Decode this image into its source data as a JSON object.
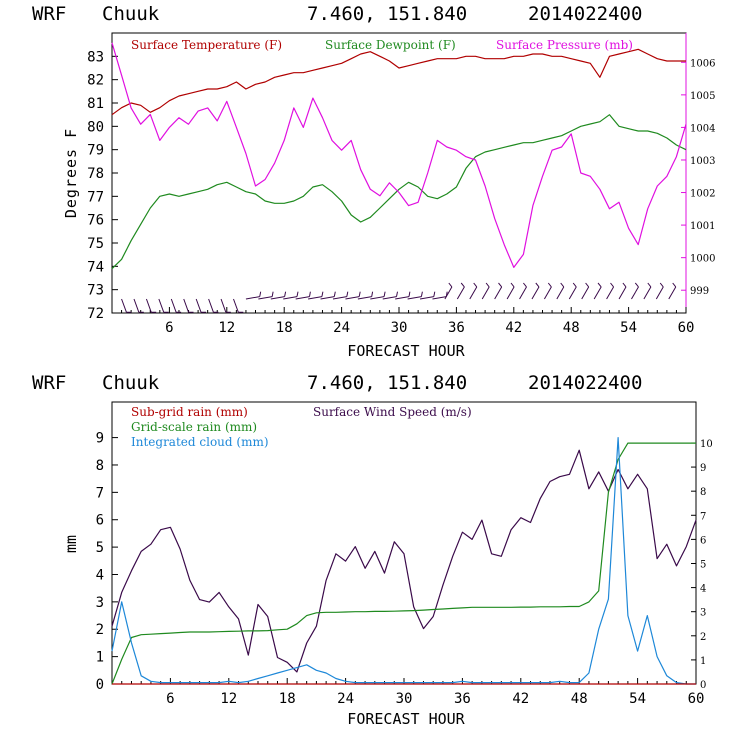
{
  "chart_data": [
    {
      "type": "line",
      "header": {
        "model": "WRF",
        "station": "Chuuk",
        "coords": "7.460, 151.840",
        "date": "2014022400"
      },
      "xlabel": "FORECAST HOUR",
      "ylabel": "Degrees F",
      "xlim": [
        0,
        60
      ],
      "ylim": [
        72,
        84
      ],
      "xticks": [
        "6",
        "12",
        "18",
        "24",
        "30",
        "36",
        "42",
        "48",
        "54",
        "60"
      ],
      "yticks": [
        "72",
        "73",
        "74",
        "75",
        "76",
        "77",
        "78",
        "79",
        "80",
        "81",
        "82",
        "83"
      ],
      "y2lim": [
        998.3,
        1006.9
      ],
      "y2ticks": [
        "999",
        "1000",
        "1001",
        "1002",
        "1003",
        "1004",
        "1005",
        "1006"
      ],
      "legend": [
        {
          "label": "Surface Temperature (F)",
          "color": "#b00000"
        },
        {
          "label": "Surface Dewpoint (F)",
          "color": "#1f8a1f"
        },
        {
          "label": "Surface Pressure (mb)",
          "color": "#e010e0"
        }
      ],
      "series": [
        {
          "name": "Surface Temperature (F)",
          "color": "#b00000",
          "axis": "left",
          "x": [
            0,
            1,
            2,
            3,
            4,
            5,
            6,
            7,
            8,
            9,
            10,
            11,
            12,
            13,
            14,
            15,
            16,
            17,
            18,
            19,
            20,
            21,
            22,
            23,
            24,
            25,
            26,
            27,
            28,
            29,
            30,
            31,
            32,
            33,
            34,
            35,
            36,
            37,
            38,
            39,
            40,
            41,
            42,
            43,
            44,
            45,
            46,
            47,
            48,
            49,
            50,
            51,
            52,
            53,
            54,
            55,
            56,
            57,
            58,
            59,
            60
          ],
          "y": [
            80.5,
            80.8,
            81.0,
            80.9,
            80.6,
            80.8,
            81.1,
            81.3,
            81.4,
            81.5,
            81.6,
            81.6,
            81.7,
            81.9,
            81.6,
            81.8,
            81.9,
            82.1,
            82.2,
            82.3,
            82.3,
            82.4,
            82.5,
            82.6,
            82.7,
            82.9,
            83.1,
            83.2,
            83.0,
            82.8,
            82.5,
            82.6,
            82.7,
            82.8,
            82.9,
            82.9,
            82.9,
            83.0,
            83.0,
            82.9,
            82.9,
            82.9,
            83.0,
            83.0,
            83.1,
            83.1,
            83.0,
            83.0,
            82.9,
            82.8,
            82.7,
            82.1,
            83.0,
            83.1,
            83.2,
            83.3,
            83.1,
            82.9,
            82.8,
            82.8,
            82.8
          ]
        },
        {
          "name": "Surface Dewpoint (F)",
          "color": "#1f8a1f",
          "axis": "left",
          "x": [
            0,
            1,
            2,
            3,
            4,
            5,
            6,
            7,
            8,
            9,
            10,
            11,
            12,
            13,
            14,
            15,
            16,
            17,
            18,
            19,
            20,
            21,
            22,
            23,
            24,
            25,
            26,
            27,
            28,
            29,
            30,
            31,
            32,
            33,
            34,
            35,
            36,
            37,
            38,
            39,
            40,
            41,
            42,
            43,
            44,
            45,
            46,
            47,
            48,
            49,
            50,
            51,
            52,
            53,
            54,
            55,
            56,
            57,
            58,
            59,
            60
          ],
          "y": [
            73.9,
            74.3,
            75.1,
            75.8,
            76.5,
            77.0,
            77.1,
            77.0,
            77.1,
            77.2,
            77.3,
            77.5,
            77.6,
            77.4,
            77.2,
            77.1,
            76.8,
            76.7,
            76.7,
            76.8,
            77.0,
            77.4,
            77.5,
            77.2,
            76.8,
            76.2,
            75.9,
            76.1,
            76.5,
            76.9,
            77.3,
            77.6,
            77.4,
            77.0,
            76.9,
            77.1,
            77.4,
            78.2,
            78.7,
            78.9,
            79.0,
            79.1,
            79.2,
            79.3,
            79.3,
            79.4,
            79.5,
            79.6,
            79.8,
            80.0,
            80.1,
            80.2,
            80.5,
            80.0,
            79.9,
            79.8,
            79.8,
            79.7,
            79.5,
            79.2,
            79.0
          ]
        },
        {
          "name": "Surface Pressure (mb)",
          "color": "#e010e0",
          "axis": "right",
          "x": [
            0,
            1,
            2,
            3,
            4,
            5,
            6,
            7,
            8,
            9,
            10,
            11,
            12,
            13,
            14,
            15,
            16,
            17,
            18,
            19,
            20,
            21,
            22,
            23,
            24,
            25,
            26,
            27,
            28,
            29,
            30,
            31,
            32,
            33,
            34,
            35,
            36,
            37,
            38,
            39,
            40,
            41,
            42,
            43,
            44,
            45,
            46,
            47,
            48,
            49,
            50,
            51,
            52,
            53,
            54,
            55,
            56,
            57,
            58,
            59,
            60
          ],
          "y": [
            1006.6,
            1005.6,
            1004.6,
            1004.1,
            1004.4,
            1003.6,
            1004.0,
            1004.3,
            1004.1,
            1004.5,
            1004.6,
            1004.2,
            1004.8,
            1004.0,
            1003.2,
            1002.2,
            1002.4,
            1002.9,
            1003.6,
            1004.6,
            1004.0,
            1004.9,
            1004.3,
            1003.6,
            1003.3,
            1003.6,
            1002.7,
            1002.1,
            1001.9,
            1002.3,
            1002.0,
            1001.6,
            1001.7,
            1002.6,
            1003.6,
            1003.4,
            1003.3,
            1003.1,
            1003.0,
            1002.2,
            1001.2,
            1000.4,
            999.7,
            1000.1,
            1001.6,
            1002.5,
            1003.3,
            1003.4,
            1003.8,
            1002.6,
            1002.5,
            1002.1,
            1001.5,
            1001.7,
            1000.9,
            1000.4,
            1001.5,
            1002.2,
            1002.5,
            1003.1,
            1004.1
          ]
        }
      ],
      "wind_barbs_row": "wind barbs along y = 72.6"
    },
    {
      "type": "line",
      "header": {
        "model": "WRF",
        "station": "Chuuk",
        "coords": "7.460, 151.840",
        "date": "2014022400"
      },
      "xlabel": "FORECAST HOUR",
      "ylabel": "mm",
      "xlim": [
        0,
        60
      ],
      "ylim": [
        0,
        10.3
      ],
      "xticks": [
        "6",
        "12",
        "18",
        "24",
        "30",
        "36",
        "42",
        "48",
        "54",
        "60"
      ],
      "yticks": [
        "0",
        "1",
        "2",
        "3",
        "4",
        "5",
        "6",
        "7",
        "8",
        "9"
      ],
      "y2lim": [
        0,
        11.7
      ],
      "y2ticks": [
        "0",
        "1",
        "2",
        "3",
        "4",
        "5",
        "6",
        "7",
        "8",
        "9",
        "10"
      ],
      "legend": [
        {
          "label": "Sub-grid rain (mm)",
          "color": "#b00000"
        },
        {
          "label": "Surface Wind Speed (m/s)",
          "color": "#3a0a4a"
        },
        {
          "label": "Grid-scale rain (mm)",
          "color": "#1f8a1f"
        },
        {
          "label": "Integrated cloud (mm)",
          "color": "#1e88d8"
        }
      ],
      "series": [
        {
          "name": "Surface Wind Speed (m/s)",
          "color": "#3a0a4a",
          "axis": "right",
          "x": [
            0,
            1,
            2,
            3,
            4,
            5,
            6,
            7,
            8,
            9,
            10,
            11,
            12,
            13,
            14,
            15,
            16,
            17,
            18,
            19,
            20,
            21,
            22,
            23,
            24,
            25,
            26,
            27,
            28,
            29,
            30,
            31,
            32,
            33,
            34,
            35,
            36,
            37,
            38,
            39,
            40,
            41,
            42,
            43,
            44,
            45,
            46,
            47,
            48,
            49,
            50,
            51,
            52,
            53,
            54,
            55,
            56,
            57,
            58,
            59,
            60
          ],
          "y": [
            2.4,
            3.8,
            4.7,
            5.5,
            5.8,
            6.4,
            6.5,
            5.6,
            4.3,
            3.5,
            3.4,
            3.8,
            3.2,
            2.7,
            1.2,
            3.3,
            2.8,
            1.1,
            0.9,
            0.5,
            1.7,
            2.4,
            4.3,
            5.4,
            5.1,
            5.7,
            4.8,
            5.5,
            4.6,
            5.9,
            5.4,
            3.2,
            2.3,
            2.8,
            4.1,
            5.3,
            6.3,
            6.0,
            6.8,
            5.4,
            5.3,
            6.4,
            6.9,
            6.7,
            7.7,
            8.4,
            8.6,
            8.7,
            9.7,
            8.1,
            8.8,
            8.0,
            8.9,
            8.1,
            8.7,
            8.1,
            5.2,
            5.8,
            4.9,
            5.7,
            6.8
          ]
        },
        {
          "name": "Grid-scale rain (mm)",
          "color": "#1f8a1f",
          "axis": "left",
          "x": [
            0,
            1,
            2,
            3,
            4,
            5,
            6,
            7,
            8,
            9,
            10,
            11,
            12,
            13,
            14,
            15,
            16,
            17,
            18,
            19,
            20,
            21,
            22,
            23,
            24,
            25,
            26,
            27,
            28,
            29,
            30,
            31,
            32,
            33,
            34,
            35,
            36,
            37,
            38,
            39,
            40,
            41,
            42,
            43,
            44,
            45,
            46,
            47,
            48,
            49,
            50,
            51,
            52,
            53,
            54,
            55,
            56,
            57,
            58,
            59,
            60
          ],
          "y": [
            0,
            0.9,
            1.7,
            1.8,
            1.82,
            1.84,
            1.86,
            1.88,
            1.9,
            1.9,
            1.9,
            1.91,
            1.92,
            1.93,
            1.94,
            1.94,
            1.95,
            1.98,
            2.0,
            2.2,
            2.5,
            2.6,
            2.62,
            2.62,
            2.63,
            2.64,
            2.64,
            2.65,
            2.65,
            2.66,
            2.67,
            2.68,
            2.7,
            2.72,
            2.74,
            2.76,
            2.78,
            2.8,
            2.8,
            2.8,
            2.8,
            2.8,
            2.81,
            2.81,
            2.82,
            2.82,
            2.82,
            2.83,
            2.83,
            3.0,
            3.4,
            7.0,
            8.2,
            8.8,
            8.8,
            8.8,
            8.8,
            8.8,
            8.8,
            8.8,
            8.8
          ]
        },
        {
          "name": "Integrated cloud (mm)",
          "color": "#1e88d8",
          "axis": "left",
          "x": [
            0,
            1,
            2,
            3,
            4,
            5,
            6,
            7,
            8,
            9,
            10,
            11,
            12,
            13,
            14,
            15,
            16,
            17,
            18,
            19,
            20,
            21,
            22,
            23,
            24,
            25,
            26,
            27,
            28,
            29,
            30,
            31,
            32,
            33,
            34,
            35,
            36,
            37,
            38,
            39,
            40,
            41,
            42,
            43,
            44,
            45,
            46,
            47,
            48,
            49,
            50,
            51,
            52,
            53,
            54,
            55,
            56,
            57,
            58,
            59,
            60
          ],
          "y": [
            1.2,
            3.0,
            1.5,
            0.3,
            0.1,
            0.05,
            0.05,
            0.05,
            0.05,
            0.05,
            0.05,
            0.05,
            0.1,
            0.05,
            0.1,
            0.2,
            0.3,
            0.4,
            0.5,
            0.6,
            0.7,
            0.5,
            0.4,
            0.2,
            0.1,
            0.05,
            0.05,
            0.05,
            0.05,
            0.05,
            0.05,
            0.05,
            0.05,
            0.05,
            0.05,
            0.05,
            0.1,
            0.05,
            0.05,
            0.05,
            0.05,
            0.05,
            0.05,
            0.05,
            0.05,
            0.05,
            0.1,
            0.05,
            0.05,
            0.4,
            2.0,
            3.1,
            9.0,
            2.5,
            1.2,
            2.5,
            1.0,
            0.3,
            0.05,
            0,
            0
          ]
        },
        {
          "name": "Sub-grid rain (mm)",
          "color": "#b00000",
          "axis": "left",
          "x": [
            0,
            60
          ],
          "y": [
            0,
            0
          ]
        }
      ]
    }
  ]
}
